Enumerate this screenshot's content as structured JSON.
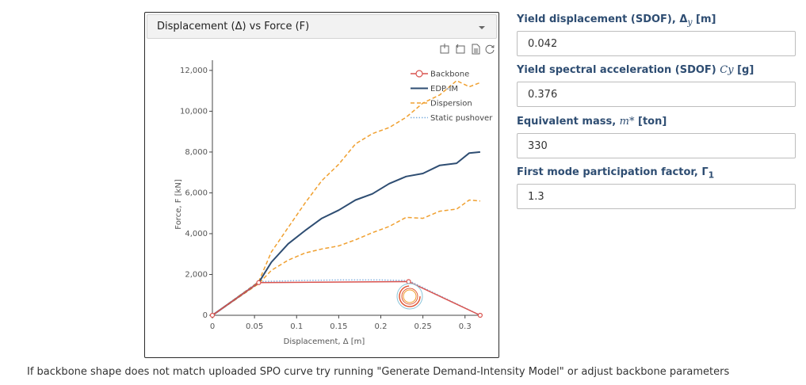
{
  "plot_panel": {
    "selector_label": "Displacement (Δ) vs Force (F)",
    "toolbar_icons": [
      "zoom-in-icon",
      "zoom-out-icon",
      "save-icon",
      "reset-icon"
    ]
  },
  "chart_data": {
    "type": "line",
    "xlabel": "Displacement, Δ [m]",
    "ylabel": "Force, F [kN]",
    "xlim": [
      0,
      0.32
    ],
    "ylim": [
      0,
      12500
    ],
    "x_ticks": [
      "0",
      "0.05",
      "0.1",
      "0.15",
      "0.2",
      "0.25",
      "0.3"
    ],
    "x_tick_values": [
      0,
      0.05,
      0.1,
      0.15,
      0.2,
      0.25,
      0.3
    ],
    "y_ticks": [
      "0",
      "2,000",
      "4,000",
      "6,000",
      "8,000",
      "10,000",
      "12,000"
    ],
    "y_tick_values": [
      0,
      2000,
      4000,
      6000,
      8000,
      10000,
      12000
    ],
    "legend_position": "top-right",
    "series": [
      {
        "name": "Backbone",
        "color": "#d9534f",
        "style": "line-markers",
        "x": [
          0,
          0.055,
          0.233,
          0.318
        ],
        "y": [
          0,
          1600,
          1650,
          0
        ]
      },
      {
        "name": "EDP-IM",
        "color": "#2e4d72",
        "style": "solid",
        "x": [
          0,
          0.055,
          0.07,
          0.09,
          0.11,
          0.13,
          0.15,
          0.17,
          0.19,
          0.21,
          0.23,
          0.25,
          0.27,
          0.29,
          0.305,
          0.318
        ],
        "y": [
          0,
          1600,
          2600,
          3500,
          4150,
          4750,
          5150,
          5650,
          5950,
          6450,
          6800,
          6950,
          7350,
          7450,
          7950,
          8000
        ]
      },
      {
        "name": "Dispersion",
        "color": "#f0a030",
        "style": "dashed",
        "x": [
          0,
          0.055,
          0.07,
          0.09,
          0.11,
          0.13,
          0.15,
          0.17,
          0.19,
          0.21,
          0.23,
          0.25,
          0.27,
          0.29,
          0.305,
          0.318
        ],
        "y": [
          0,
          1650,
          3100,
          4300,
          5500,
          6600,
          7400,
          8400,
          8900,
          9200,
          9700,
          10400,
          10800,
          11500,
          11200,
          11400
        ]
      },
      {
        "name": "Dispersion",
        "color": "#f0a030",
        "style": "dashed",
        "x": [
          0,
          0.055,
          0.07,
          0.09,
          0.11,
          0.13,
          0.15,
          0.17,
          0.19,
          0.21,
          0.23,
          0.25,
          0.27,
          0.29,
          0.305,
          0.318
        ],
        "y": [
          0,
          1550,
          2200,
          2700,
          3050,
          3250,
          3400,
          3700,
          4050,
          4350,
          4800,
          4750,
          5100,
          5200,
          5650,
          5600
        ]
      },
      {
        "name": "Static pushover",
        "color": "#7fb0e0",
        "style": "dotted",
        "x": [
          0,
          0.055,
          0.1,
          0.15,
          0.2,
          0.233,
          0.318
        ],
        "y": [
          0,
          1650,
          1700,
          1730,
          1730,
          1700,
          0
        ]
      }
    ]
  },
  "inputs": [
    {
      "label_prefix": "Yield displacement (SDOF), Δ",
      "label_math": "y",
      "label_suffix": " [m]",
      "value": "0.042"
    },
    {
      "label_prefix": "Yield spectral acceleration (SDOF) ",
      "label_math": "Cy",
      "label_suffix": " [g]",
      "value": "0.376"
    },
    {
      "label_prefix": "Equivalent mass, ",
      "label_math": "m*",
      "label_suffix": " [ton]",
      "value": "330"
    },
    {
      "label_prefix": "First mode participation factor, Γ",
      "label_math": "1",
      "label_suffix": "",
      "value": "1.3"
    }
  ],
  "footer_note": "If backbone shape does not match uploaded SPO curve try running \"Generate Demand-Intensity Model\" or adjust backbone parameters"
}
